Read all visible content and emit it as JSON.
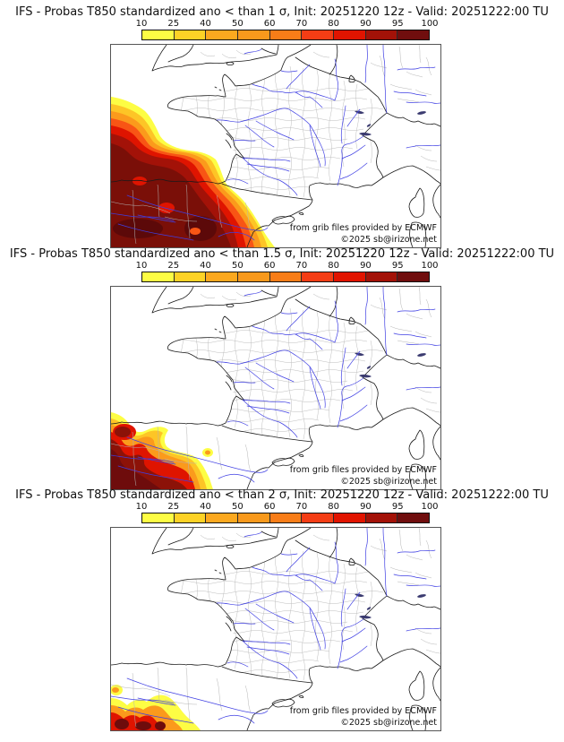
{
  "colorbar": {
    "ticks": [
      "10",
      "25",
      "40",
      "50",
      "60",
      "70",
      "80",
      "90",
      "95",
      "100"
    ],
    "colors": [
      "#fdfd44",
      "#fdd226",
      "#fba81f",
      "#f8991c",
      "#f87d18",
      "#f43d15",
      "#e11400",
      "#a31208",
      "#700e0e"
    ]
  },
  "panels": [
    {
      "title": "IFS - Probas T850  standardized ano < than 1 σ, Init: 20251220 12z - Valid: 20251222:00 TU"
    },
    {
      "title": "IFS - Probas T850  standardized ano < than 1.5 σ, Init: 20251220 12z - Valid: 20251222:00 TU"
    },
    {
      "title": "IFS - Probas T850  standardized ano < than 2 σ, Init: 20251220 12z - Valid: 20251222:00 TU"
    }
  ],
  "attribution": {
    "line1": "from grib files provided by ECMWF",
    "line2": "©2025 sb@irizone.net"
  },
  "map_colors": {
    "coast": "#1a1a1a",
    "river": "#3f3fe3",
    "admin": "#bdbdbd",
    "lake": "#3b3b70",
    "frame": "#555555"
  }
}
